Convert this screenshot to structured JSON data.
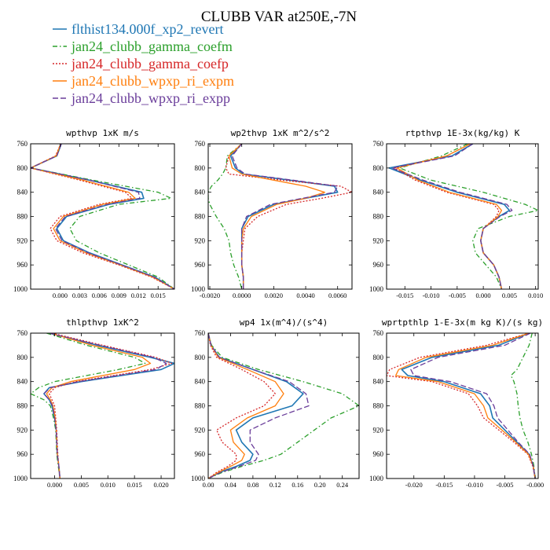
{
  "figure": {
    "title": "CLUBB VAR at250E,-7N"
  },
  "legend": {
    "entries": [
      {
        "label": "flthist134.000f_xp2_revert",
        "color": "#1f77b4",
        "dash": ""
      },
      {
        "label": "jan24_clubb_gamma_coefm",
        "color": "#2ca02c",
        "dash": "6,3,1.5,3"
      },
      {
        "label": "jan24_clubb_gamma_coefp",
        "color": "#d62728",
        "dash": "2,2"
      },
      {
        "label": "jan24_clubb_wpxp_ri_expm",
        "color": "#ff7f0e",
        "dash": ""
      },
      {
        "label": "jan24_clubb_wpxp_ri_expp",
        "color": "#6a3d9a",
        "dash": "7,3"
      }
    ]
  },
  "chart_data": [
    {
      "type": "line",
      "title": "wpthvp  1xK m/s",
      "xlim": [
        -0.0045,
        0.0175
      ],
      "ylim": [
        760,
        1000
      ],
      "xticks": [
        0.0,
        0.003,
        0.006,
        0.009,
        0.012,
        0.015
      ],
      "xtick_labels": [
        "0.000",
        "0.003",
        "0.006",
        "0.009",
        "0.012",
        "0.015"
      ],
      "yticks": [
        760,
        800,
        840,
        880,
        920,
        960,
        1000
      ],
      "y": [
        760,
        780,
        800,
        820,
        840,
        850,
        860,
        880,
        900,
        920,
        940,
        960,
        980,
        1000
      ],
      "series": [
        {
          "name": "flthist134.000f_xp2_revert",
          "values": [
            0.0002,
            -0.0005,
            -0.0045,
            0.0045,
            0.0125,
            0.0128,
            0.0075,
            0.001,
            -0.0005,
            0.0005,
            0.0045,
            0.0095,
            0.0145,
            0.0175
          ]
        },
        {
          "name": "jan24_clubb_gamma_coefm",
          "values": [
            0.0002,
            -0.0005,
            -0.0045,
            0.005,
            0.015,
            0.017,
            0.009,
            0.003,
            0.0015,
            0.0025,
            0.006,
            0.0105,
            0.015,
            0.0175
          ]
        },
        {
          "name": "jan24_clubb_gamma_coefp",
          "values": [
            0.0001,
            -0.0007,
            -0.0045,
            0.003,
            0.01,
            0.011,
            0.006,
            0.0,
            -0.0015,
            -0.0005,
            0.0035,
            0.009,
            0.014,
            0.0175
          ]
        },
        {
          "name": "jan24_clubb_wpxp_ri_expm",
          "values": [
            0.0001,
            -0.0006,
            -0.0045,
            0.0035,
            0.0105,
            0.0115,
            0.0065,
            0.0005,
            -0.001,
            0.0,
            0.004,
            0.0092,
            0.0142,
            0.0175
          ]
        },
        {
          "name": "jan24_clubb_wpxp_ri_expp",
          "values": [
            0.0002,
            -0.0005,
            -0.0045,
            0.0045,
            0.012,
            0.0122,
            0.0072,
            0.0008,
            -0.0007,
            0.0003,
            0.0043,
            0.0094,
            0.0144,
            0.0175
          ]
        }
      ]
    },
    {
      "type": "line",
      "title": "wp2thvp  1xK m^2/s^2",
      "xlim": [
        -0.0021,
        0.0069
      ],
      "ylim": [
        760,
        1000
      ],
      "xticks": [
        -0.002,
        0.0,
        0.002,
        0.004,
        0.006
      ],
      "xtick_labels": [
        "-0.0020",
        "0.0000",
        "0.0020",
        "0.0040",
        "0.0060"
      ],
      "yticks": [
        760,
        800,
        840,
        880,
        920,
        960,
        1000
      ],
      "y": [
        760,
        780,
        800,
        810,
        820,
        830,
        840,
        850,
        860,
        880,
        900,
        920,
        940,
        960,
        980,
        1000
      ],
      "series": [
        {
          "name": "flthist134.000f_xp2_revert",
          "values": [
            0.0,
            -0.0007,
            -0.0004,
            0.0001,
            0.003,
            0.0058,
            0.006,
            0.004,
            0.002,
            0.0004,
            0.0,
            0.0,
            0.0,
            0.0,
            0.0001,
            0.0001
          ]
        },
        {
          "name": "jan24_clubb_gamma_coefm",
          "values": [
            0.0,
            -0.0009,
            -0.001,
            -0.0012,
            -0.0015,
            -0.0019,
            -0.0021,
            -0.0021,
            -0.002,
            -0.0016,
            -0.0011,
            -0.0008,
            -0.0007,
            -0.0005,
            -0.0002,
            0.0
          ]
        },
        {
          "name": "jan24_clubb_gamma_coefp",
          "values": [
            0.0,
            -0.0008,
            -0.001,
            -0.0008,
            0.0025,
            0.0062,
            0.0069,
            0.005,
            0.0028,
            0.001,
            0.0002,
            0.0001,
            0.0,
            0.0,
            0.0001,
            0.0001
          ]
        },
        {
          "name": "jan24_clubb_wpxp_ri_expm",
          "values": [
            0.0,
            -0.0008,
            -0.0006,
            0.0,
            0.002,
            0.004,
            0.0052,
            0.004,
            0.0022,
            0.0006,
            0.0001,
            0.0,
            0.0,
            0.0,
            0.0001,
            0.0001
          ]
        },
        {
          "name": "jan24_clubb_wpxp_ri_expp",
          "values": [
            0.0,
            -0.0006,
            -0.0003,
            0.0002,
            0.0032,
            0.006,
            0.0058,
            0.0038,
            0.0018,
            0.0003,
            0.0,
            0.0,
            0.0,
            0.0,
            0.0001,
            0.0001
          ]
        }
      ]
    },
    {
      "type": "line",
      "title": "rtpthvp  1E-3x(kg/kg) K",
      "xlim": [
        -0.0185,
        0.0105
      ],
      "ylim": [
        760,
        1000
      ],
      "xticks": [
        -0.015,
        -0.01,
        -0.005,
        0.0,
        0.005,
        0.01
      ],
      "xtick_labels": [
        "-0.015",
        "-0.010",
        "-0.005",
        "0.000",
        "0.005",
        "0.010"
      ],
      "yticks": [
        760,
        800,
        840,
        880,
        920,
        960,
        1000
      ],
      "y": [
        760,
        780,
        800,
        820,
        840,
        860,
        870,
        880,
        900,
        920,
        940,
        960,
        980,
        1000
      ],
      "series": [
        {
          "name": "flthist134.000f_xp2_revert",
          "values": [
            -0.002,
            -0.006,
            -0.018,
            -0.012,
            -0.005,
            0.004,
            0.005,
            0.003,
            0.0,
            -0.0005,
            0.0,
            0.002,
            0.003,
            0.0035
          ]
        },
        {
          "name": "jan24_clubb_gamma_coefm",
          "values": [
            -0.003,
            -0.008,
            -0.016,
            -0.01,
            0.0,
            0.008,
            0.0105,
            0.005,
            -0.001,
            -0.002,
            -0.0015,
            0.0005,
            0.0025,
            0.0035
          ]
        },
        {
          "name": "jan24_clubb_gamma_coefp",
          "values": [
            -0.0025,
            -0.007,
            -0.017,
            -0.013,
            -0.007,
            0.002,
            0.003,
            0.0025,
            0.0,
            -0.0005,
            0.0,
            0.002,
            0.003,
            0.0035
          ]
        },
        {
          "name": "jan24_clubb_wpxp_ri_expm",
          "values": [
            -0.0025,
            -0.007,
            -0.0165,
            -0.0125,
            -0.0065,
            0.0025,
            0.0035,
            0.0028,
            0.0,
            -0.0005,
            0.0,
            0.002,
            0.003,
            0.0035
          ]
        },
        {
          "name": "jan24_clubb_wpxp_ri_expp",
          "values": [
            -0.002,
            -0.0055,
            -0.0175,
            -0.0115,
            -0.0045,
            0.0045,
            0.0055,
            0.0032,
            0.0,
            -0.0005,
            0.0,
            0.002,
            0.003,
            0.0035
          ]
        }
      ]
    },
    {
      "type": "line",
      "title": "thlpthvp  1xK^2",
      "xlim": [
        -0.0045,
        0.0225
      ],
      "ylim": [
        760,
        1000
      ],
      "xticks": [
        0.0,
        0.005,
        0.01,
        0.015,
        0.02
      ],
      "xtick_labels": [
        "0.000",
        "0.005",
        "0.010",
        "0.015",
        "0.020"
      ],
      "yticks": [
        760,
        800,
        840,
        880,
        920,
        960,
        1000
      ],
      "y": [
        760,
        780,
        800,
        810,
        820,
        840,
        850,
        860,
        870,
        880,
        900,
        920,
        960,
        980,
        1000
      ],
      "series": [
        {
          "name": "flthist134.000f_xp2_revert",
          "values": [
            -0.001,
            0.008,
            0.018,
            0.0225,
            0.02,
            0.005,
            -0.001,
            -0.002,
            -0.001,
            -0.0005,
            0.0,
            0.0003,
            0.0005,
            0.0008,
            0.001
          ]
        },
        {
          "name": "jan24_clubb_gamma_coefm",
          "values": [
            -0.0015,
            0.006,
            0.015,
            0.017,
            0.012,
            0.0,
            -0.003,
            -0.0045,
            -0.002,
            -0.0008,
            -0.0002,
            0.0002,
            0.0004,
            0.0007,
            0.001
          ]
        },
        {
          "name": "jan24_clubb_gamma_coefp",
          "values": [
            -0.0005,
            0.009,
            0.019,
            0.022,
            0.018,
            0.004,
            0.0,
            -0.001,
            -0.0005,
            0.0,
            0.0002,
            0.0004,
            0.0006,
            0.0008,
            0.001
          ]
        },
        {
          "name": "jan24_clubb_wpxp_ri_expm",
          "values": [
            -0.0008,
            0.007,
            0.0165,
            0.018,
            0.015,
            0.003,
            -0.0005,
            -0.0015,
            -0.0008,
            -0.0003,
            0.0001,
            0.0003,
            0.0005,
            0.0008,
            0.001
          ]
        },
        {
          "name": "jan24_clubb_wpxp_ri_expp",
          "values": [
            -0.001,
            0.0085,
            0.0185,
            0.021,
            0.019,
            0.0045,
            -0.0008,
            -0.002,
            -0.001,
            -0.0004,
            0.0,
            0.0003,
            0.0005,
            0.0008,
            0.001
          ]
        }
      ]
    },
    {
      "type": "line",
      "title": "wp4  1x(m^4)/(s^4)",
      "xlim": [
        0.0,
        0.27
      ],
      "ylim": [
        760,
        1000
      ],
      "xticks": [
        0.0,
        0.04,
        0.08,
        0.12,
        0.16,
        0.2,
        0.24
      ],
      "xtick_labels": [
        "0.00",
        "0.04",
        "0.08",
        "0.12",
        "0.16",
        "0.20",
        "0.24"
      ],
      "yticks": [
        760,
        800,
        840,
        880,
        920,
        960,
        1000
      ],
      "y": [
        760,
        780,
        800,
        820,
        840,
        860,
        880,
        900,
        920,
        940,
        960,
        970,
        980,
        990,
        1000
      ],
      "series": [
        {
          "name": "flthist134.000f_xp2_revert",
          "values": [
            0.0,
            0.005,
            0.02,
            0.08,
            0.14,
            0.17,
            0.15,
            0.08,
            0.05,
            0.06,
            0.08,
            0.075,
            0.05,
            0.02,
            0.0
          ]
        },
        {
          "name": "jan24_clubb_gamma_coefm",
          "values": [
            0.0,
            0.006,
            0.025,
            0.09,
            0.17,
            0.24,
            0.27,
            0.22,
            0.19,
            0.16,
            0.13,
            0.1,
            0.06,
            0.025,
            0.0
          ]
        },
        {
          "name": "jan24_clubb_gamma_coefp",
          "values": [
            0.0,
            0.004,
            0.015,
            0.06,
            0.1,
            0.12,
            0.1,
            0.05,
            0.015,
            0.025,
            0.05,
            0.05,
            0.035,
            0.015,
            0.0
          ]
        },
        {
          "name": "jan24_clubb_wpxp_ri_expm",
          "values": [
            0.0,
            0.005,
            0.018,
            0.07,
            0.12,
            0.135,
            0.12,
            0.07,
            0.04,
            0.045,
            0.065,
            0.06,
            0.04,
            0.018,
            0.0
          ]
        },
        {
          "name": "jan24_clubb_wpxp_ri_expp",
          "values": [
            0.0,
            0.005,
            0.02,
            0.08,
            0.145,
            0.175,
            0.18,
            0.12,
            0.075,
            0.075,
            0.09,
            0.085,
            0.055,
            0.022,
            0.0
          ]
        }
      ]
    },
    {
      "type": "line",
      "title": "wprtpthlp  1-E-3x(m kg K)/(s kg)",
      "xlim": [
        -0.0245,
        0.0005
      ],
      "ylim": [
        760,
        1000
      ],
      "xticks": [
        -0.02,
        -0.015,
        -0.01,
        -0.005,
        -0.0
      ],
      "xtick_labels": [
        "-0.020",
        "-0.015",
        "-0.010",
        "-0.005",
        "-0.000"
      ],
      "yticks": [
        760,
        800,
        840,
        880,
        920,
        960,
        1000
      ],
      "y": [
        760,
        780,
        800,
        820,
        830,
        840,
        860,
        880,
        900,
        920,
        940,
        960,
        980,
        1000
      ],
      "series": [
        {
          "name": "flthist134.000f_xp2_revert",
          "values": [
            -0.001,
            -0.006,
            -0.017,
            -0.022,
            -0.021,
            -0.015,
            -0.009,
            -0.0075,
            -0.007,
            -0.005,
            -0.003,
            -0.001,
            -0.0003,
            0.0
          ]
        },
        {
          "name": "jan24_clubb_gamma_coefm",
          "values": [
            -0.0005,
            -0.001,
            -0.002,
            -0.003,
            -0.004,
            -0.0035,
            -0.003,
            -0.0028,
            -0.0025,
            -0.002,
            -0.0012,
            -0.0006,
            -0.0002,
            0.0
          ]
        },
        {
          "name": "jan24_clubb_gamma_coefp",
          "values": [
            -0.001,
            -0.008,
            -0.019,
            -0.024,
            -0.0245,
            -0.017,
            -0.011,
            -0.0095,
            -0.0085,
            -0.006,
            -0.0035,
            -0.0012,
            -0.0004,
            0.0
          ]
        },
        {
          "name": "jan24_clubb_wpxp_ri_expm",
          "values": [
            -0.001,
            -0.007,
            -0.018,
            -0.0225,
            -0.023,
            -0.016,
            -0.01,
            -0.0085,
            -0.0078,
            -0.0055,
            -0.0032,
            -0.0011,
            -0.0003,
            0.0
          ]
        },
        {
          "name": "jan24_clubb_wpxp_ri_expp",
          "values": [
            -0.0008,
            -0.005,
            -0.016,
            -0.0205,
            -0.02,
            -0.014,
            -0.008,
            -0.0068,
            -0.0062,
            -0.0045,
            -0.0028,
            -0.0009,
            -0.0003,
            0.0
          ]
        }
      ]
    }
  ]
}
